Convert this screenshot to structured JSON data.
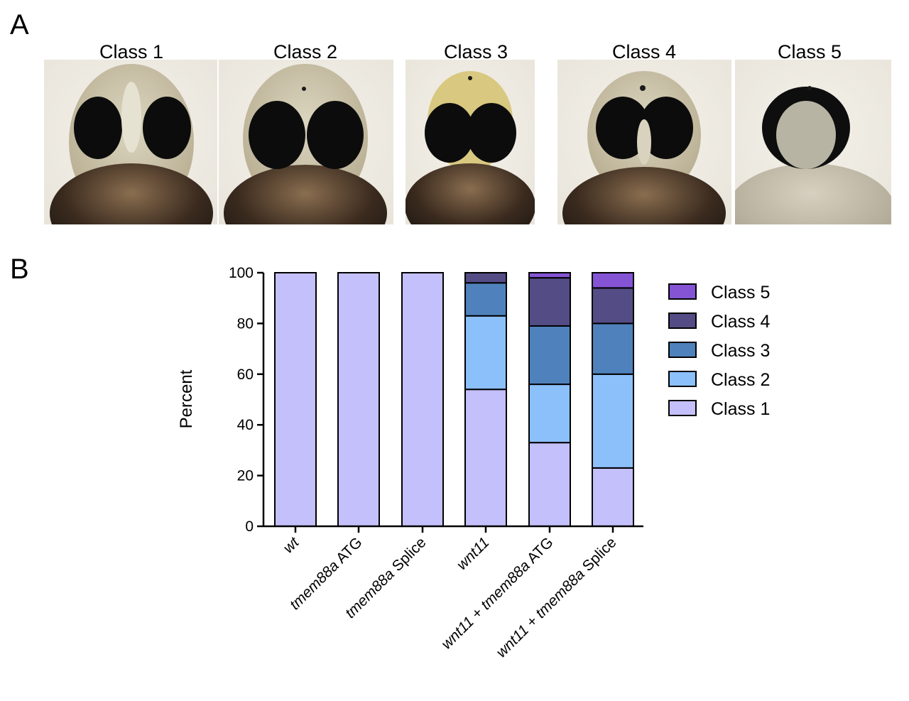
{
  "figure": {
    "panel_a_letter": "A",
    "panel_b_letter": "B",
    "class_titles": [
      "Class 1",
      "Class 2",
      "Class 3",
      "Class 4",
      "Class 5"
    ]
  },
  "chart_data": {
    "type": "bar",
    "stacked": true,
    "ylabel": "Percent",
    "ylim": [
      0,
      100
    ],
    "yticks": [
      0,
      20,
      40,
      60,
      80,
      100
    ],
    "categories": [
      {
        "parts": [
          {
            "text": "wt",
            "italic": true
          }
        ]
      },
      {
        "parts": [
          {
            "text": "tmem88a",
            "italic": true
          },
          {
            "text": " ATG",
            "italic": false
          }
        ]
      },
      {
        "parts": [
          {
            "text": "tmem88a",
            "italic": true
          },
          {
            "text": " Splice",
            "italic": false
          }
        ]
      },
      {
        "parts": [
          {
            "text": "wnt11",
            "italic": true
          }
        ]
      },
      {
        "parts": [
          {
            "text": "wnt11",
            "italic": true
          },
          {
            "text": " + ",
            "italic": false
          },
          {
            "text": "tmem88a",
            "italic": true
          },
          {
            "text": " ATG",
            "italic": false
          }
        ]
      },
      {
        "parts": [
          {
            "text": "wnt11",
            "italic": true
          },
          {
            "text": " + ",
            "italic": false
          },
          {
            "text": "tmem88a",
            "italic": true
          },
          {
            "text": " Splice",
            "italic": false
          }
        ]
      }
    ],
    "series": [
      {
        "name": "Class 1",
        "color": "#c4c0fb",
        "values": [
          100,
          100,
          100,
          54,
          33,
          23
        ]
      },
      {
        "name": "Class 2",
        "color": "#8cc0fb",
        "values": [
          0,
          0,
          0,
          29,
          23,
          37
        ]
      },
      {
        "name": "Class 3",
        "color": "#4f82bc",
        "values": [
          0,
          0,
          0,
          13,
          23,
          20
        ]
      },
      {
        "name": "Class 4",
        "color": "#544d85",
        "values": [
          0,
          0,
          0,
          4,
          19,
          14
        ]
      },
      {
        "name": "Class 5",
        "color": "#8454d4",
        "values": [
          0,
          0,
          0,
          0,
          2,
          6
        ]
      }
    ],
    "legend_position": "right",
    "legend_order": [
      "Class 5",
      "Class 4",
      "Class 3",
      "Class 2",
      "Class 1"
    ],
    "grid": false
  }
}
